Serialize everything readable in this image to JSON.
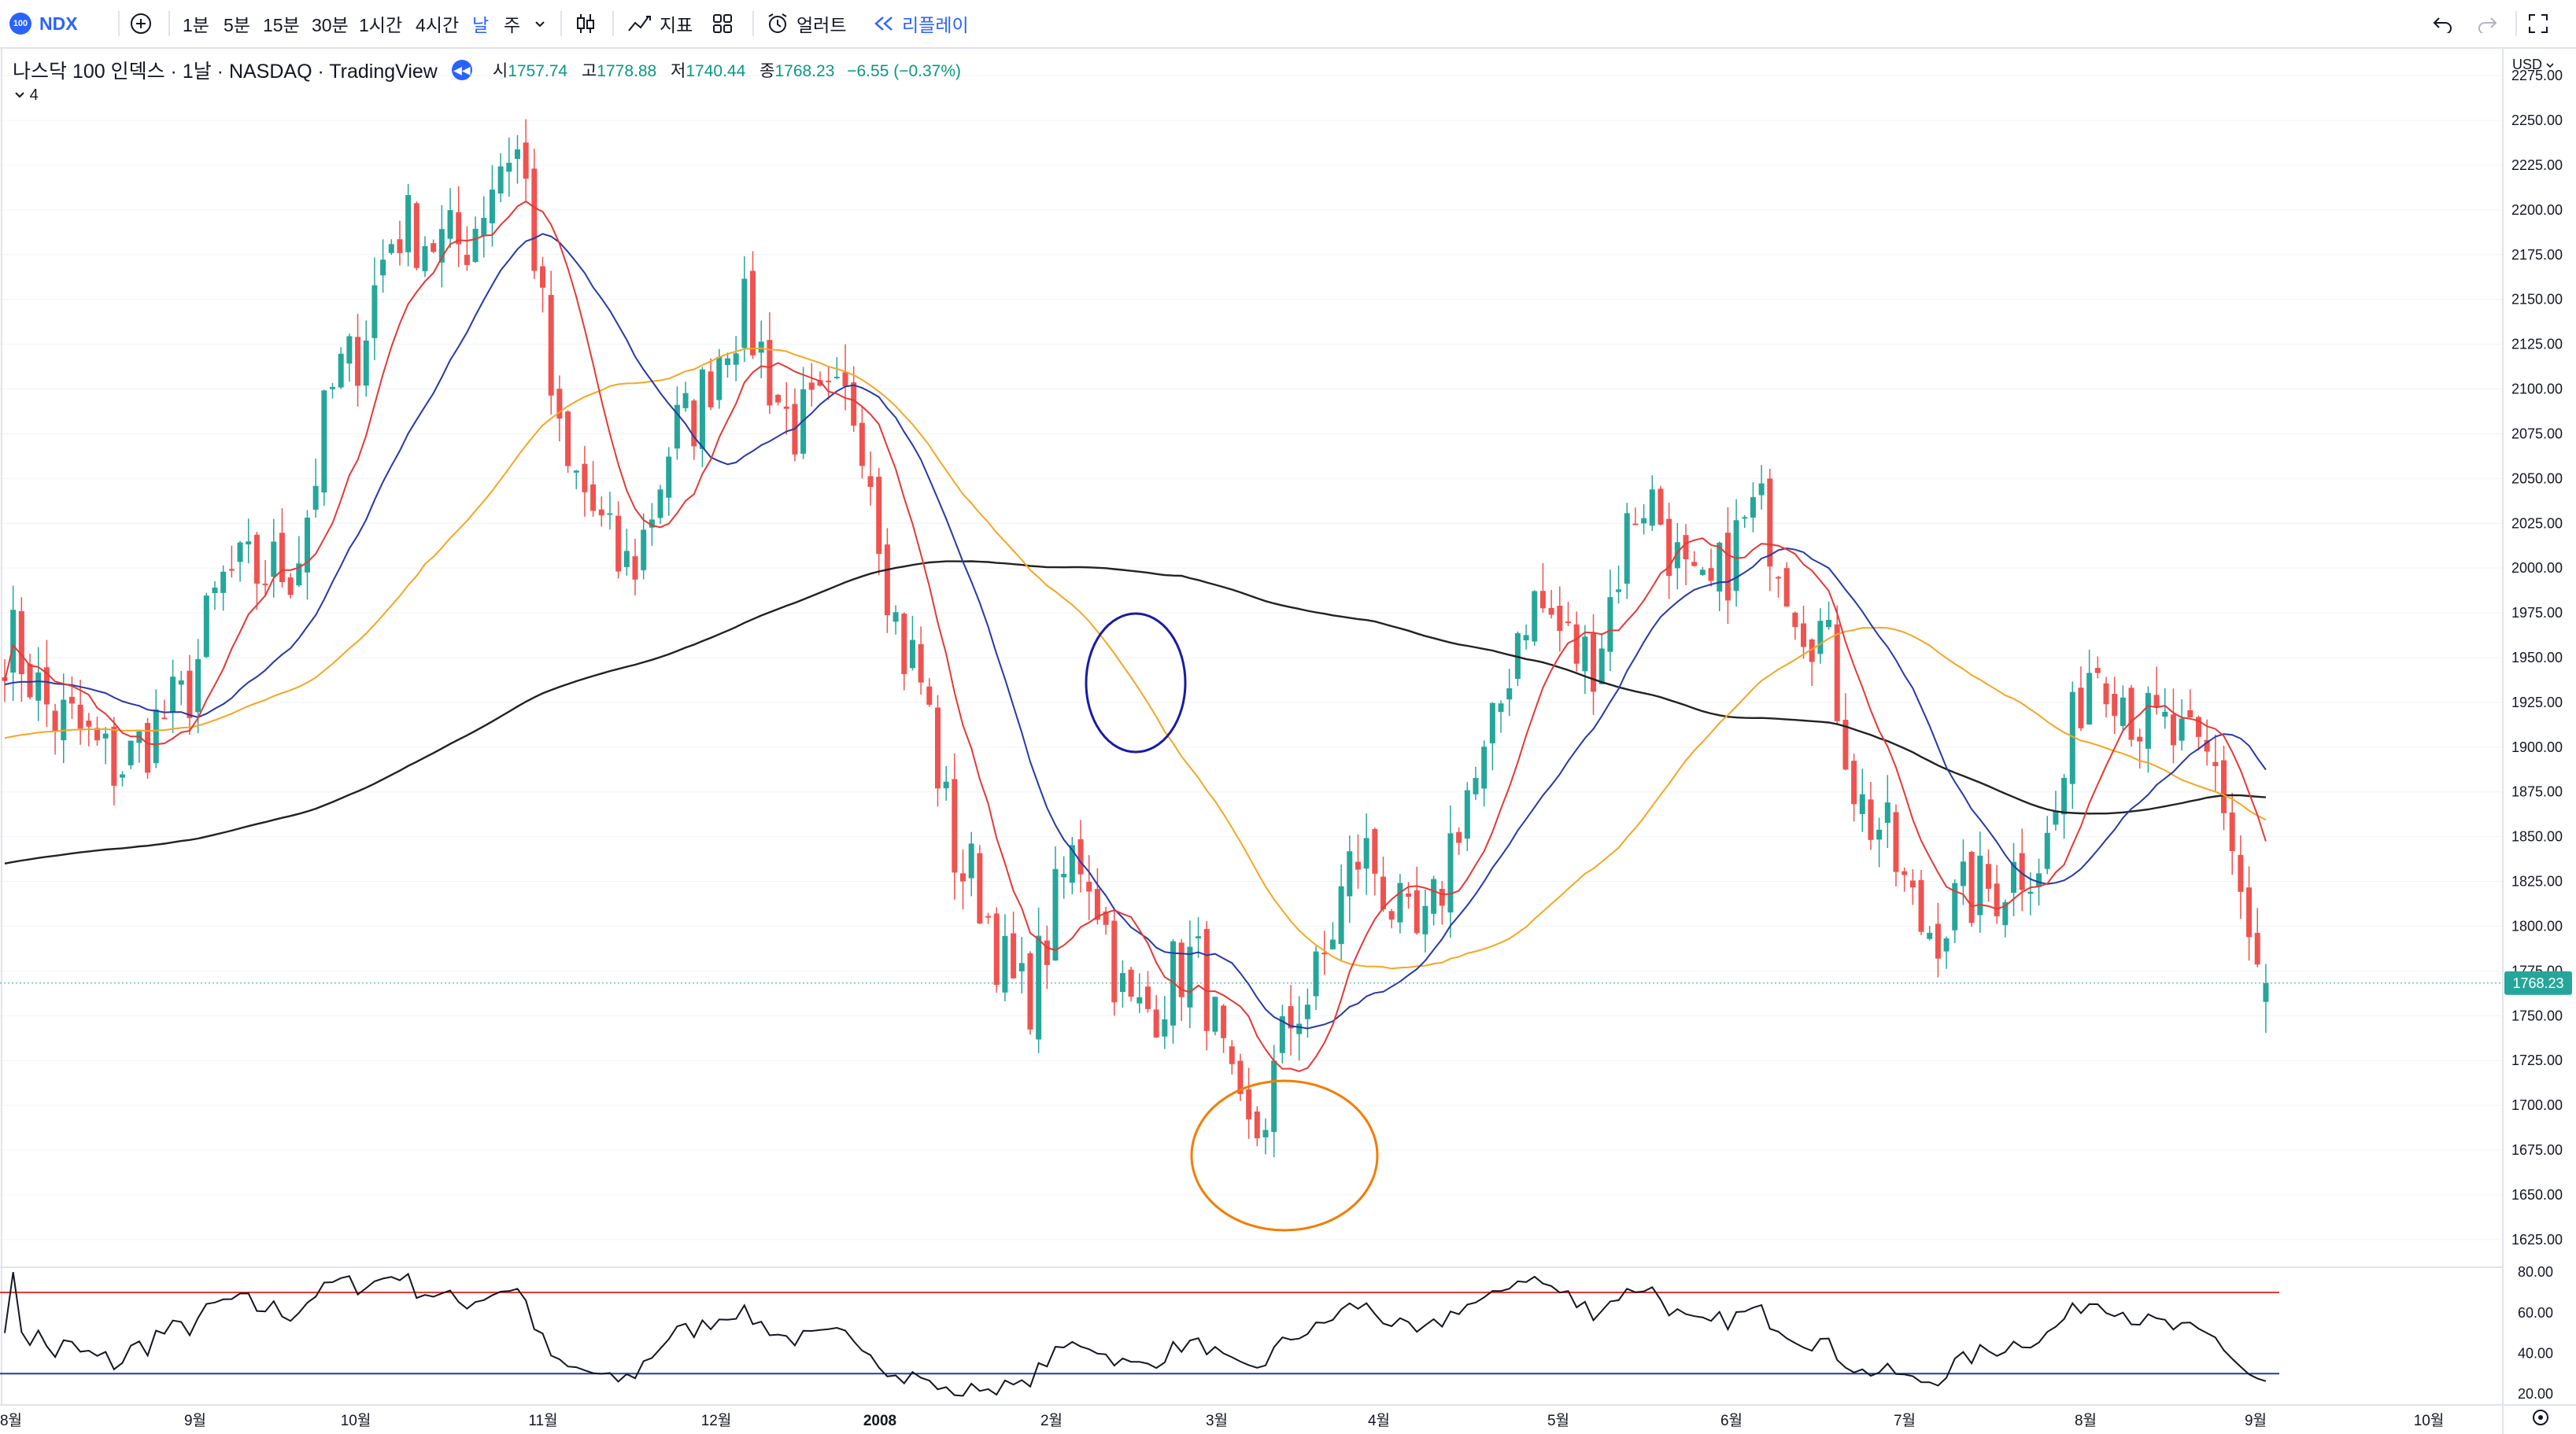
{
  "toolbar": {
    "symbol": "NDX",
    "logo_text": "100",
    "intervals": [
      "1분",
      "5분",
      "15분",
      "30분",
      "1시간",
      "4시간",
      "날",
      "주"
    ],
    "active_interval": "날",
    "indicators_label": "지표",
    "alerts_label": "얼러트",
    "replay_label": "리플레이"
  },
  "legend": {
    "title": "나스닥 100 인덱스 · 1날 · NASDAQ · TradingView",
    "open_label": "시",
    "open": "1757.74",
    "high_label": "고",
    "high": "1778.88",
    "low_label": "저",
    "low": "1740.44",
    "close_label": "종",
    "close": "1768.23",
    "change": "−6.55 (−0.37%)",
    "collapse_count": "4"
  },
  "price_axis": {
    "currency": "USD",
    "ticks": [
      "2275.00",
      "2250.00",
      "2225.00",
      "2200.00",
      "2175.00",
      "2150.00",
      "2125.00",
      "2100.00",
      "2075.00",
      "2050.00",
      "2025.00",
      "2000.00",
      "1975.00",
      "1950.00",
      "1925.00",
      "1900.00",
      "1875.00",
      "1850.00",
      "1825.00",
      "1800.00",
      "1775.00",
      "1750.00",
      "1725.00",
      "1700.00",
      "1675.00",
      "1650.00",
      "1625.00"
    ],
    "last_price_label": "1768.23"
  },
  "oscillator_axis": {
    "ticks": [
      "80.00",
      "60.00",
      "40.00",
      "20.00"
    ]
  },
  "time_axis": {
    "labels": [
      "8월",
      "9월",
      "10월",
      "11월",
      "12월",
      "2008",
      "2월",
      "3월",
      "4월",
      "5월",
      "6월",
      "7월",
      "8월",
      "9월",
      "10월"
    ]
  },
  "colors": {
    "up": "#26a69a",
    "down": "#ef5350",
    "ma_fast": "#e53935",
    "ma_mid": "#2739a6",
    "ma_slow": "#f5a623",
    "ma_long": "#222222",
    "accent": "#2962ff"
  },
  "chart_data": {
    "type": "candlestick",
    "symbol": "NDX",
    "interval": "1D",
    "ylim": [
      1610,
      2290
    ],
    "last": {
      "open": 1757.74,
      "high": 1778.88,
      "low": 1740.44,
      "close": 1768.23,
      "change": -6.55,
      "change_pct": -0.37
    },
    "close_path": [
      {
        "month": "8월",
        "close": 1960
      },
      {
        "month": "8월",
        "close": 1915
      },
      {
        "month": "8월",
        "close": 1890
      },
      {
        "month": "9월",
        "close": 1920
      },
      {
        "month": "9월",
        "close": 1995
      },
      {
        "month": "9월",
        "close": 2000
      },
      {
        "month": "10월",
        "close": 2110
      },
      {
        "month": "10월",
        "close": 2190
      },
      {
        "month": "10월",
        "close": 2180
      },
      {
        "month": "11월",
        "close": 2235
      },
      {
        "month": "11월",
        "close": 2050
      },
      {
        "month": "11월",
        "close": 2000
      },
      {
        "month": "12월",
        "close": 2080
      },
      {
        "month": "12월",
        "close": 2140
      },
      {
        "month": "12월",
        "close": 2080
      },
      {
        "month": "2008",
        "close": 2090
      },
      {
        "month": "2008",
        "close": 1950
      },
      {
        "month": "2008",
        "close": 1830
      },
      {
        "month": "2월",
        "close": 1760
      },
      {
        "month": "2월",
        "close": 1840
      },
      {
        "month": "2월",
        "close": 1750
      },
      {
        "month": "3월",
        "close": 1780
      },
      {
        "month": "3월",
        "close": 1680
      },
      {
        "month": "3월",
        "close": 1760
      },
      {
        "month": "4월",
        "close": 1840
      },
      {
        "month": "4월",
        "close": 1790
      },
      {
        "month": "4월",
        "close": 1880
      },
      {
        "month": "5월",
        "close": 1980
      },
      {
        "month": "5월",
        "close": 1950
      },
      {
        "month": "5월",
        "close": 2040
      },
      {
        "month": "6월",
        "close": 1980
      },
      {
        "month": "6월",
        "close": 2030
      },
      {
        "month": "6월",
        "close": 1970
      },
      {
        "month": "7월",
        "close": 1860
      },
      {
        "month": "7월",
        "close": 1800
      },
      {
        "month": "7월",
        "close": 1820
      },
      {
        "month": "8월",
        "close": 1840
      },
      {
        "month": "8월",
        "close": 1950
      },
      {
        "month": "8월",
        "close": 1910
      },
      {
        "month": "9월",
        "close": 1890
      },
      {
        "month": "9월",
        "close": 1768.23
      }
    ],
    "oscillator": {
      "ylim": [
        15,
        82
      ],
      "upper_line": 70,
      "lower_line": 30
    },
    "annotations": [
      {
        "shape": "circle",
        "color": "#1a1aa6",
        "near": "2008년 2월 하순, 이동평균선 교차 구간"
      },
      {
        "shape": "circle",
        "color": "#f57c00",
        "near": "2008년 3월 저점 구간"
      }
    ]
  }
}
